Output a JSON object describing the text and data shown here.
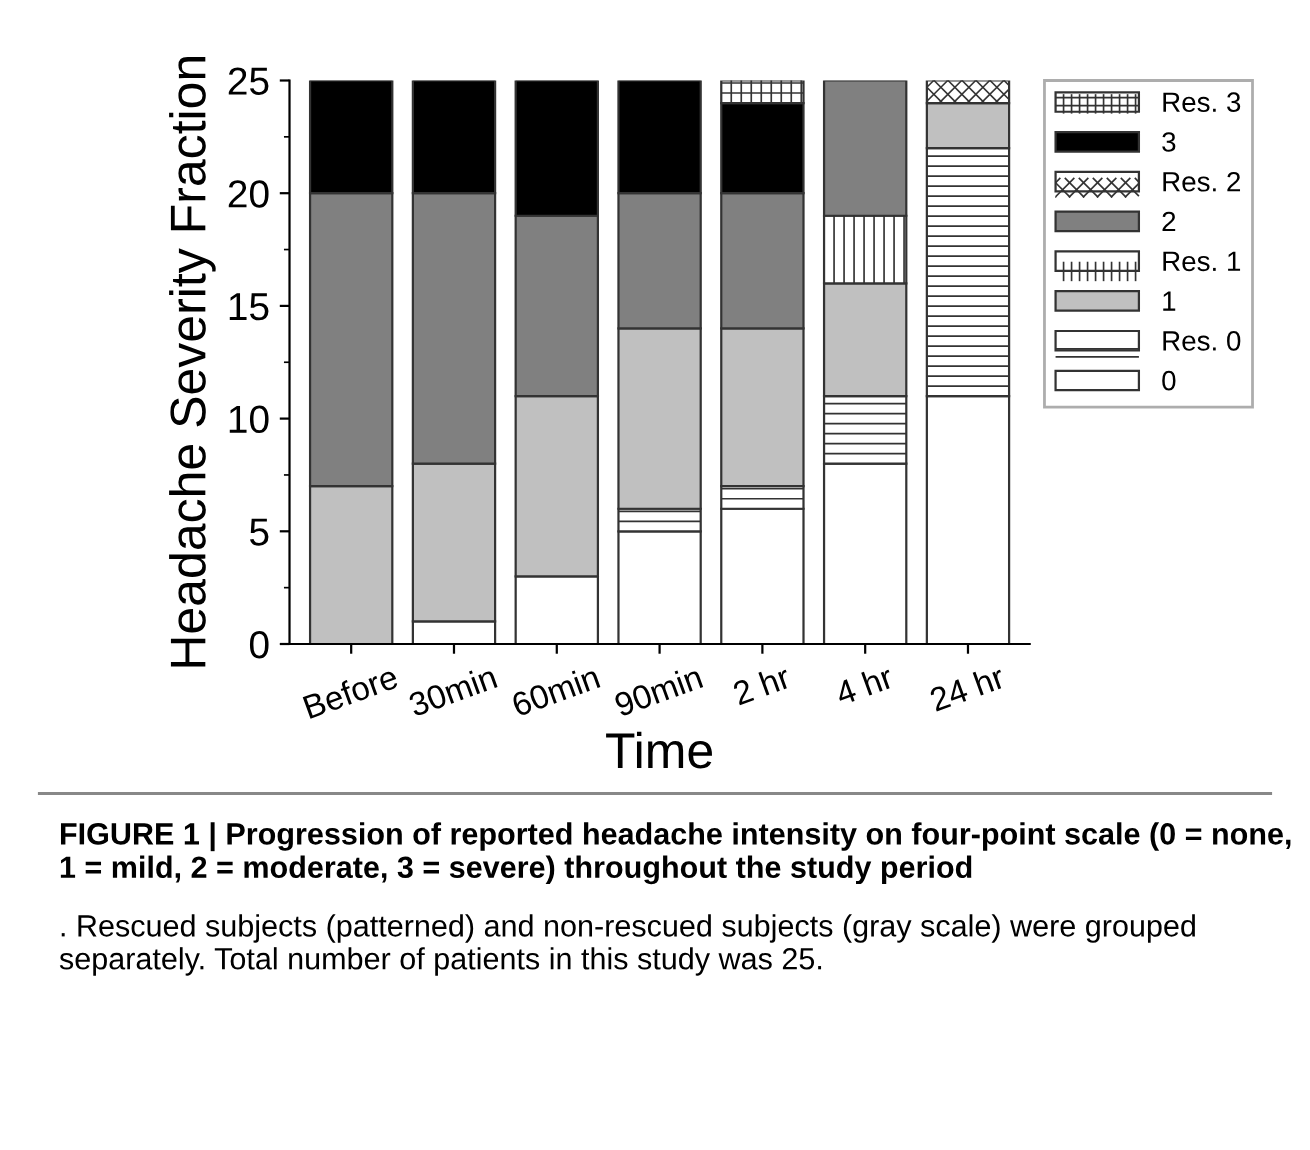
{
  "chart_data": {
    "type": "bar",
    "stacked": true,
    "xlabel": "Time",
    "ylabel": "Headache Severity Fraction",
    "categories": [
      "Before",
      "30min",
      "60min",
      "90min",
      "2 hr",
      "4 hr",
      "24 hr"
    ],
    "series": [
      {
        "name": "0",
        "color": "#ffffff",
        "values": [
          0,
          1,
          3,
          5,
          6,
          8,
          11
        ]
      },
      {
        "name": "Res. 0",
        "color": "#ffffff",
        "values": [
          0,
          0,
          0,
          1,
          1,
          3,
          11
        ]
      },
      {
        "name": "1",
        "color": "#c0c0c0",
        "values": [
          7,
          7,
          8,
          8,
          7,
          5,
          2
        ]
      },
      {
        "name": "Res. 1",
        "color": "#ffffff",
        "values": [
          0,
          0,
          0,
          0,
          0,
          3,
          0
        ]
      },
      {
        "name": "2",
        "color": "#808080",
        "values": [
          13,
          12,
          8,
          6,
          6,
          6,
          0
        ]
      },
      {
        "name": "Res. 2",
        "color": "#ffffff",
        "values": [
          0,
          0,
          0,
          0,
          0,
          0,
          1
        ]
      },
      {
        "name": "3",
        "color": "#000000",
        "values": [
          5,
          5,
          6,
          5,
          4,
          0,
          0
        ]
      },
      {
        "name": "Res. 3",
        "color": "#ffffff",
        "values": [
          0,
          0,
          0,
          0,
          1,
          0,
          0
        ]
      }
    ],
    "ylim": [
      0,
      25
    ],
    "yticks": [
      0,
      5,
      10,
      15,
      20,
      25
    ],
    "grid": false,
    "legend": "top right",
    "annotations": [
      "FIGURE 1 | Progression of reported headache intensity on four-point scale (0 = none, 1 = mild, 2 = moderate, 3 = severe) throughout the study period",
      ". Rescued subjects (patterned) and non-rescued subjects (gray scale) were grouped separately. Total number of patients in this study was 25."
    ]
  }
}
